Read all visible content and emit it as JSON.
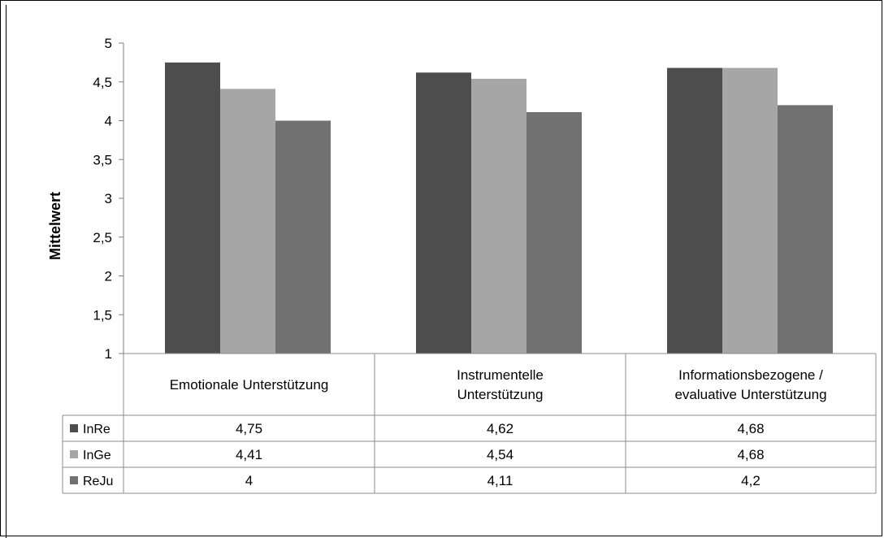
{
  "chart_data": {
    "type": "bar",
    "title": "",
    "xlabel": "",
    "ylabel": "Mittelwert",
    "ylim": [
      1,
      5
    ],
    "yticks": [
      "1",
      "1,5",
      "2",
      "2,5",
      "3",
      "3,5",
      "4",
      "4,5",
      "5"
    ],
    "categories": [
      [
        "Emotionale Unterstützung"
      ],
      [
        "Instrumentelle",
        "Unterstützung"
      ],
      [
        "Informationsbezogene /",
        "evaluative Unterstützung"
      ]
    ],
    "series": [
      {
        "name": "InRe",
        "color": "#4d4d4d",
        "values": [
          4.75,
          4.62,
          4.68
        ],
        "labels": [
          "4,75",
          "4,62",
          "4,68"
        ]
      },
      {
        "name": "InGe",
        "color": "#a6a6a6",
        "values": [
          4.41,
          4.54,
          4.68
        ],
        "labels": [
          "4,41",
          "4,54",
          "4,68"
        ]
      },
      {
        "name": "ReJu",
        "color": "#717171",
        "values": [
          4,
          4.11,
          4.2
        ],
        "labels": [
          "4",
          "4,11",
          "4,2"
        ]
      }
    ],
    "grid": false,
    "legend": "data-table"
  }
}
